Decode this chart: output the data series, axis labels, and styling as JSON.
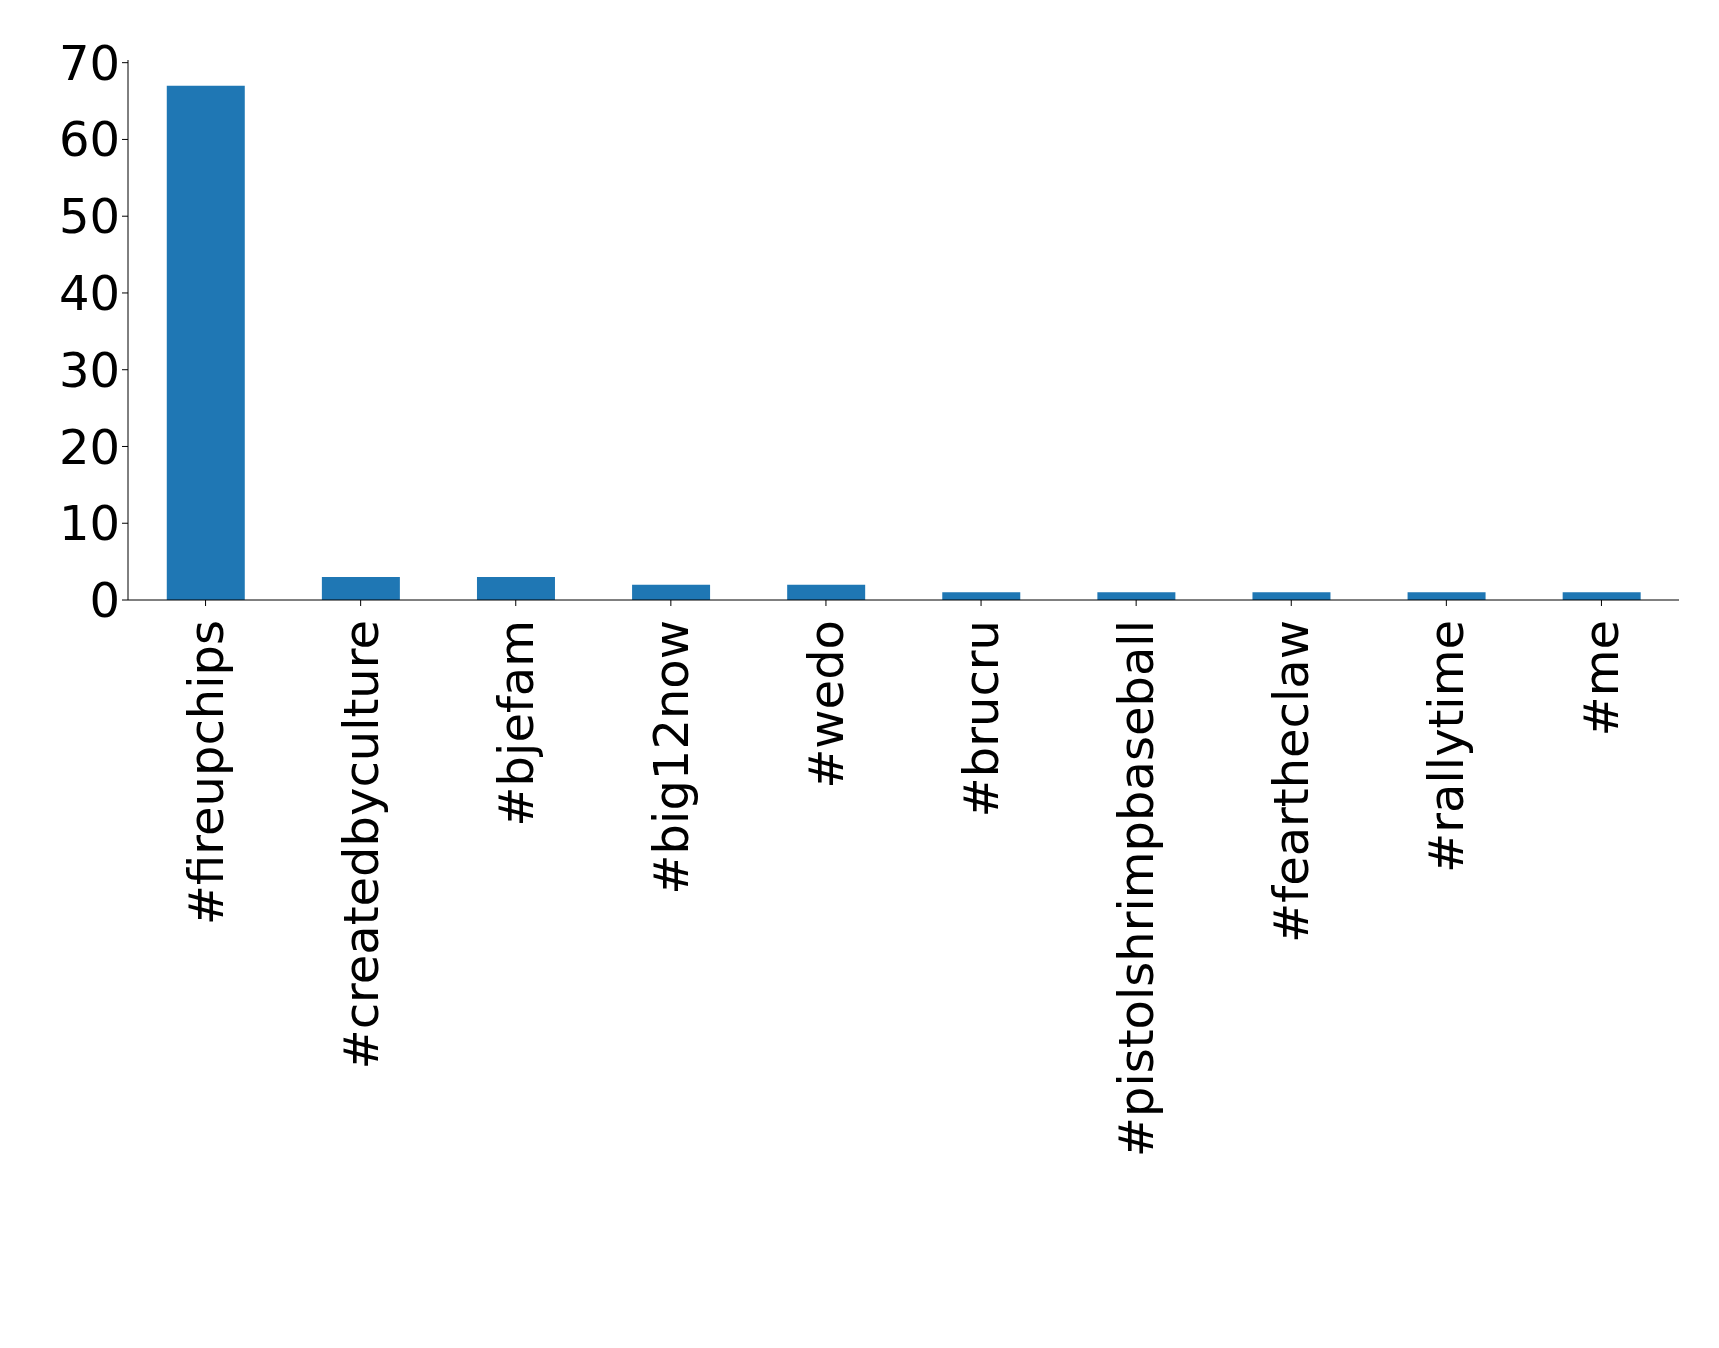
{
  "chart_data": {
    "type": "bar",
    "categories": [
      "#fireupchips",
      "#createdbyculture",
      "#bjefam",
      "#big12now",
      "#wedo",
      "#brucru",
      "#pistolshrimpbaseball",
      "#feartheclaw",
      "#rallytime",
      "#me"
    ],
    "values": [
      67,
      3,
      3,
      2,
      2,
      1,
      1,
      1,
      1,
      1
    ],
    "color": "#1f77b4",
    "ylim": [
      0,
      70.35
    ],
    "yticks": [
      0,
      10,
      20,
      30,
      40,
      50,
      60,
      70
    ],
    "grid": false,
    "legend": false
  }
}
